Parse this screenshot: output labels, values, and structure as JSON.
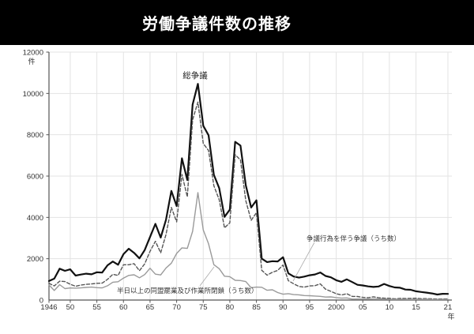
{
  "header": {
    "title": "労働争議件数の推移"
  },
  "chart_data": {
    "type": "line",
    "title": "労働争議件数の推移",
    "ylabel_unit": "件",
    "xlabel_unit": "年",
    "ylim": [
      0,
      12000
    ],
    "y_ticks": [
      0,
      2000,
      4000,
      6000,
      8000,
      10000,
      12000
    ],
    "grid": true,
    "x_start_year": 1946,
    "x_end_year": 2021,
    "x_tick_labels": [
      {
        "label": "1946",
        "year": 1946
      },
      {
        "label": "50",
        "year": 1950
      },
      {
        "label": "55",
        "year": 1955
      },
      {
        "label": "60",
        "year": 1960
      },
      {
        "label": "65",
        "year": 1965
      },
      {
        "label": "70",
        "year": 1970
      },
      {
        "label": "75",
        "year": 1975
      },
      {
        "label": "80",
        "year": 1980
      },
      {
        "label": "85",
        "year": 1985
      },
      {
        "label": "90",
        "year": 1990
      },
      {
        "label": "95",
        "year": 1995
      },
      {
        "label": "2000",
        "year": 2000
      },
      {
        "label": "05",
        "year": 2005
      },
      {
        "label": "10",
        "year": 2010
      },
      {
        "label": "15",
        "year": 2015
      },
      {
        "label": "21",
        "year": 2021
      }
    ],
    "series": [
      {
        "name": "総争議",
        "style": "solid",
        "color": "#111111",
        "width": 2.2,
        "values": [
          920,
          1035,
          1517,
          1414,
          1487,
          1186,
          1233,
          1277,
          1247,
          1345,
          1330,
          1680,
          1864,
          1709,
          2222,
          2483,
          2287,
          2016,
          2422,
          3051,
          3687,
          3024,
          3882,
          5283,
          4551,
          6861,
          5808,
          9459,
          10462,
          8435,
          7974,
          6060,
          5416,
          4026,
          4376,
          7660,
          7477,
          5562,
          4480,
          4826,
          2002,
          1839,
          1879,
          1868,
          2071,
          1292,
          1138,
          1084,
          1136,
          1200,
          1240,
          1334,
          1164,
          1102,
          958,
          884,
          1002,
          872,
          737,
          708,
          662,
          636,
          657,
          780,
          682,
          612,
          596,
          507,
          495,
          425,
          391,
          358,
          320,
          268,
          303,
          297
        ]
      },
      {
        "name": "争議行為を伴う争議（うち数）",
        "style": "dashed",
        "color": "#555555",
        "width": 1.4,
        "values": [
          810,
          683,
          913,
          896,
          763,
          670,
          725,
          762,
          780,
          809,
          817,
          1002,
          1247,
          1193,
          1707,
          1710,
          1762,
          1421,
          1754,
          2359,
          2845,
          2284,
          3167,
          4482,
          3783,
          6082,
          4996,
          8720,
          9581,
          7574,
          7240,
          5533,
          4852,
          3492,
          3737,
          7034,
          6779,
          4814,
          3855,
          4230,
          1439,
          1202,
          1347,
          1433,
          1698,
          935,
          788,
          657,
          628,
          685,
          695,
          782,
          526,
          419,
          305,
          246,
          304,
          174,
          173,
          129,
          111,
          156,
          112,
          92,
          85,
          57,
          79,
          71,
          80,
          86,
          66,
          68,
          58,
          49,
          57,
          55
        ]
      },
      {
        "name": "半日以上の同盟罷業及び作業所閉鎖（うち数）",
        "style": "solid",
        "color": "#9a9a9a",
        "width": 1.4,
        "values": [
          730,
          464,
          744,
          554,
          584,
          576,
          590,
          611,
          626,
          601,
          590,
          690,
          864,
          887,
          1063,
          1194,
          1222,
          1079,
          1234,
          1542,
          1252,
          1214,
          1546,
          1783,
          2256,
          2527,
          2498,
          3326,
          5197,
          3391,
          2720,
          1712,
          1517,
          1153,
          1133,
          955,
          944,
          893,
          596,
          627,
          620,
          474,
          498,
          362,
          284,
          310,
          263,
          252,
          216,
          209,
          193,
          178,
          145,
          154,
          118,
          90,
          104,
          47,
          51,
          50,
          46,
          54,
          52,
          48,
          38,
          28,
          38,
          31,
          27,
          39,
          31,
          38,
          26,
          27,
          35,
          32
        ]
      }
    ],
    "annotations": [
      {
        "id": "label-total",
        "text": "総争議"
      },
      {
        "id": "label-acts",
        "text": "争議行為を伴う争議（うち数）"
      },
      {
        "id": "label-strikes",
        "text": "半日以上の同盟罷業及び作業所閉鎖（うち数）"
      }
    ]
  }
}
